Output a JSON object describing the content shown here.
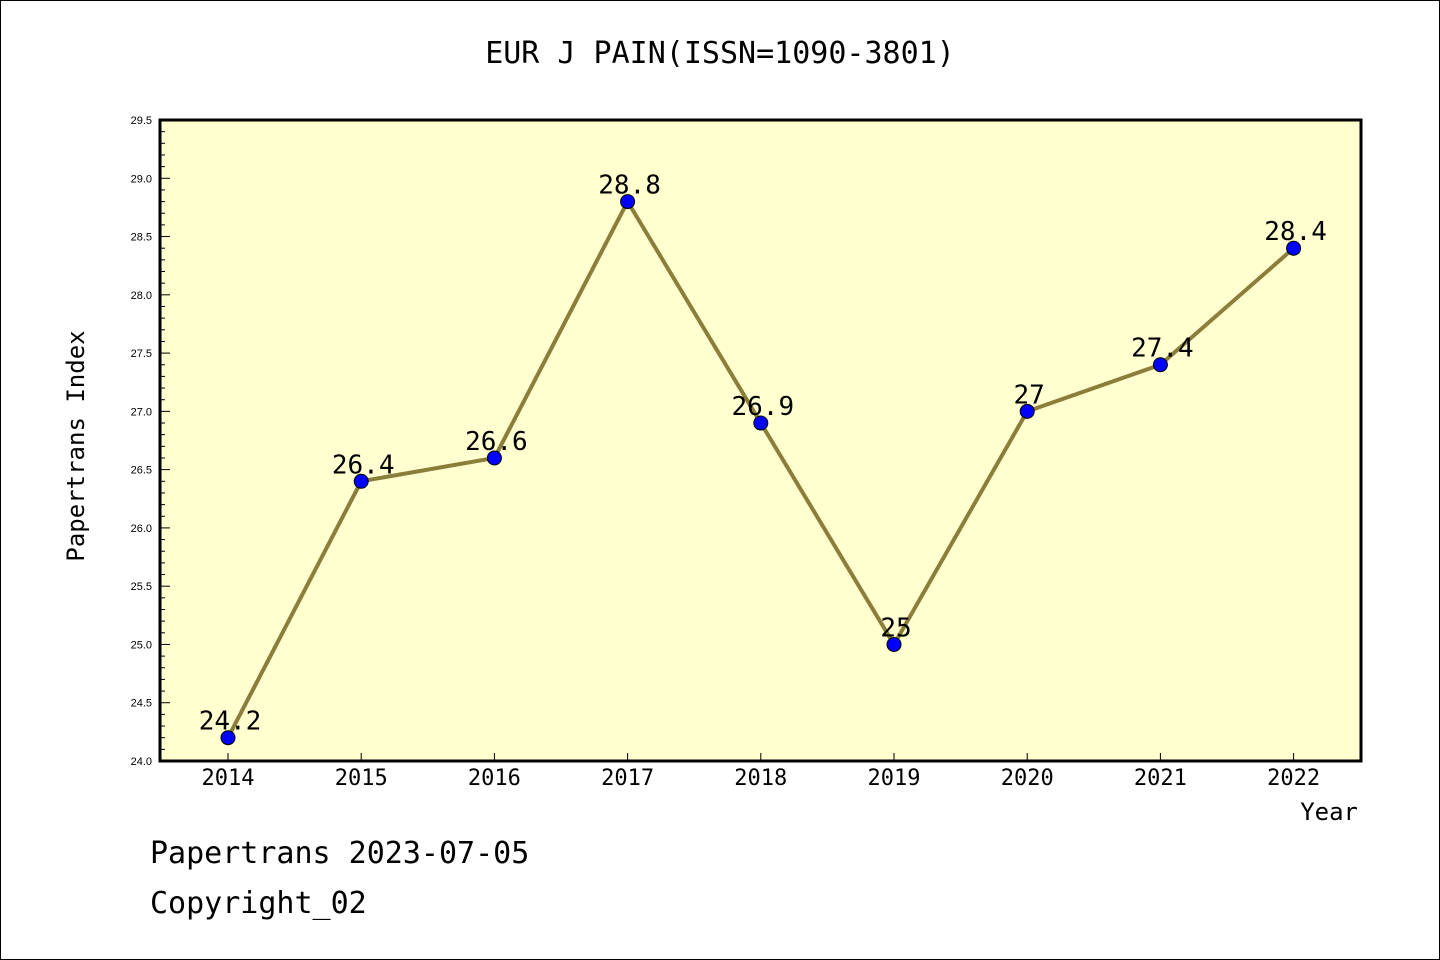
{
  "chart_data": {
    "type": "line",
    "title": "EUR J PAIN(ISSN=1090-3801)",
    "xlabel": "Year",
    "ylabel": "Papertrans Index",
    "categories": [
      "2014",
      "2015",
      "2016",
      "2017",
      "2018",
      "2019",
      "2020",
      "2021",
      "2022"
    ],
    "values": [
      24.2,
      26.4,
      26.6,
      28.8,
      26.9,
      25,
      27,
      27.4,
      28.4
    ],
    "data_labels": [
      "24.2",
      "26.4",
      "26.6",
      "28.8",
      "26.9",
      "25",
      "27",
      "27.4",
      "28.4"
    ],
    "ylim": [
      24.0,
      29.5
    ],
    "yticks": [
      "24.0",
      "24.5",
      "25.0",
      "25.5",
      "26.0",
      "26.5",
      "27.0",
      "27.5",
      "28.0",
      "28.5",
      "29.0",
      "29.5"
    ],
    "grid": false,
    "colors": {
      "plot_background": "#ffffd0",
      "line": "#8b7d3a",
      "marker": "#0000ff"
    }
  },
  "footer": {
    "line1": "Papertrans 2023-07-05",
    "line2": "Copyright_02"
  }
}
